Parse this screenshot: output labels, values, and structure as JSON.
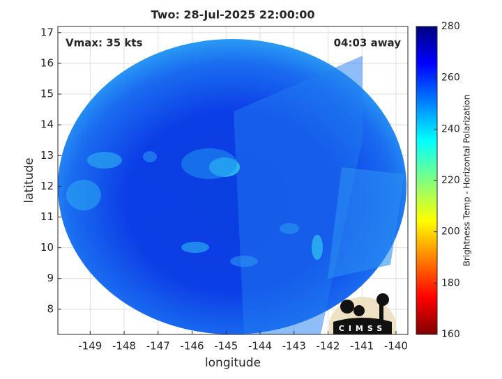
{
  "chart_data": {
    "type": "heatmap",
    "title": "Two: 28-Jul-2025 22:00:00",
    "annotations": [
      "Vmax: 35 kts",
      "04:03 away"
    ],
    "xlabel": "longitude",
    "ylabel": "latitude",
    "xlim": [
      -149.95,
      -139.65
    ],
    "ylim": [
      7.18,
      17.2
    ],
    "xticks": [
      -149,
      -148,
      -147,
      -146,
      -145,
      -144,
      -143,
      -142,
      -141,
      -140
    ],
    "yticks": [
      8,
      9,
      10,
      11,
      12,
      13,
      14,
      15,
      16,
      17
    ],
    "grid": true,
    "colorbar": {
      "label": "Brightness Temp - Horizontal Polarization",
      "lim": [
        160,
        280
      ],
      "ticks": [
        160,
        180,
        200,
        220,
        240,
        260,
        280
      ]
    },
    "logo": "CIMSS"
  }
}
